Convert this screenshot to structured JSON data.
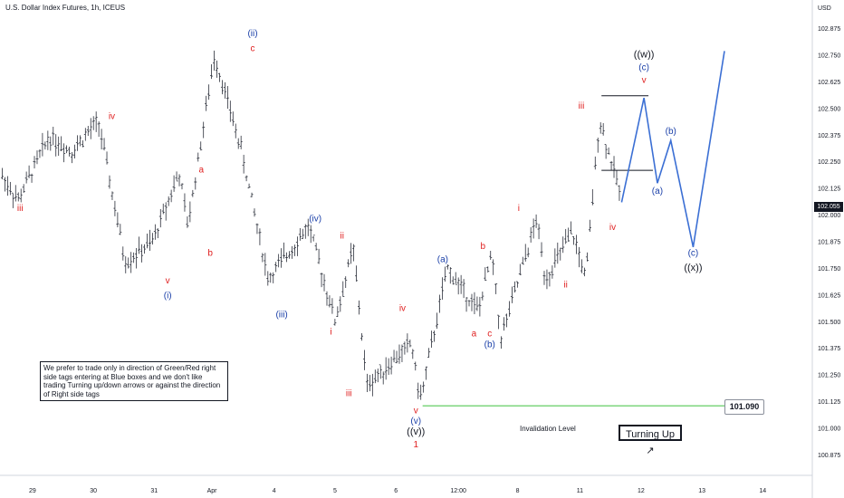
{
  "header": {
    "title": "U.S. Dollar Index Futures, 1h, ICEUS"
  },
  "note": "We prefer to trade only in direction of Green/Red right side tags entering at Blue boxes and we don't like trading Turning up/down arrows or against the direction of Right side tags",
  "turning_label": "Turning Up ↗",
  "invalidation_label": "Invalidation Level",
  "invalidation_value": "101.090",
  "current_price": "102.055",
  "colors": {
    "red": "#e02020",
    "blue": "#1a3fa8",
    "black": "#131722",
    "green": "#7ed67e",
    "candle": "#2a2e39"
  },
  "chart_data": {
    "type": "line",
    "title": "U.S. Dollar Index Futures, 1h, ICEUS",
    "yunit": "USD",
    "ylim": [
      100.8,
      102.95
    ],
    "yticks": [
      "102.875",
      "102.750",
      "102.625",
      "102.500",
      "102.375",
      "102.250",
      "102.125",
      "102.000",
      "101.875",
      "101.750",
      "101.625",
      "101.500",
      "101.375",
      "101.250",
      "101.125",
      "101.000",
      "100.875"
    ],
    "xticks": [
      "29",
      "30",
      "31",
      "Apr",
      "4",
      "5",
      "6",
      "12:00",
      "8",
      "11",
      "12",
      "13",
      "14"
    ],
    "price_path": [
      {
        "t": 0.0,
        "y": 102.2
      },
      {
        "t": 0.4,
        "y": 102.07
      },
      {
        "t": 1.1,
        "y": 102.37
      },
      {
        "t": 1.6,
        "y": 102.3
      },
      {
        "t": 2.2,
        "y": 102.44
      },
      {
        "t": 2.8,
        "y": 101.78
      },
      {
        "t": 3.4,
        "y": 101.87
      },
      {
        "t": 4.0,
        "y": 102.2
      },
      {
        "t": 4.2,
        "y": 101.95
      },
      {
        "t": 4.8,
        "y": 102.75
      },
      {
        "t": 5.4,
        "y": 102.3
      },
      {
        "t": 6.0,
        "y": 101.7
      },
      {
        "t": 6.9,
        "y": 101.95
      },
      {
        "t": 7.5,
        "y": 101.5
      },
      {
        "t": 7.9,
        "y": 101.85
      },
      {
        "t": 8.2,
        "y": 101.2
      },
      {
        "t": 9.2,
        "y": 101.4
      },
      {
        "t": 9.4,
        "y": 101.13
      },
      {
        "t": 10.0,
        "y": 101.75
      },
      {
        "t": 10.7,
        "y": 101.55
      },
      {
        "t": 11.0,
        "y": 101.82
      },
      {
        "t": 11.2,
        "y": 101.42
      },
      {
        "t": 12.0,
        "y": 101.98
      },
      {
        "t": 12.2,
        "y": 101.7
      },
      {
        "t": 12.8,
        "y": 101.92
      },
      {
        "t": 13.1,
        "y": 101.7
      },
      {
        "t": 13.4,
        "y": 102.45
      },
      {
        "t": 13.9,
        "y": 102.08
      }
    ],
    "projection": [
      {
        "t": 13.9,
        "y": 102.06
      },
      {
        "t": 14.4,
        "y": 102.55
      },
      {
        "t": 14.7,
        "y": 102.15
      },
      {
        "t": 15.0,
        "y": 102.35
      },
      {
        "t": 15.5,
        "y": 101.85
      },
      {
        "t": 16.2,
        "y": 102.77
      }
    ],
    "levels": [
      {
        "y": 102.56,
        "t0": 13.45,
        "t1": 14.5
      },
      {
        "y": 102.21,
        "t0": 13.45,
        "t1": 14.6
      },
      {
        "y": 101.105,
        "t0": 9.45,
        "t1": 16.2
      }
    ],
    "labels": [
      {
        "t": 0.45,
        "y": 102.02,
        "text": "iii",
        "color": "red"
      },
      {
        "t": 2.5,
        "y": 102.45,
        "text": "iv",
        "color": "red"
      },
      {
        "t": 3.75,
        "y": 101.68,
        "text": "v",
        "color": "red"
      },
      {
        "t": 3.75,
        "y": 101.61,
        "text": "(i)",
        "color": "blue"
      },
      {
        "t": 4.5,
        "y": 102.2,
        "text": "a",
        "color": "red"
      },
      {
        "t": 4.7,
        "y": 101.81,
        "text": "b",
        "color": "red"
      },
      {
        "t": 5.65,
        "y": 102.84,
        "text": "(ii)",
        "color": "blue"
      },
      {
        "t": 5.65,
        "y": 102.77,
        "text": "c",
        "color": "red"
      },
      {
        "t": 6.3,
        "y": 101.52,
        "text": "(iii)",
        "color": "blue"
      },
      {
        "t": 7.05,
        "y": 101.97,
        "text": "(iv)",
        "color": "blue"
      },
      {
        "t": 7.65,
        "y": 101.89,
        "text": "ii",
        "color": "red"
      },
      {
        "t": 7.4,
        "y": 101.44,
        "text": "i",
        "color": "red"
      },
      {
        "t": 7.8,
        "y": 101.15,
        "text": "iii",
        "color": "red"
      },
      {
        "t": 9.0,
        "y": 101.55,
        "text": "iv",
        "color": "red"
      },
      {
        "t": 9.3,
        "y": 101.07,
        "text": "v",
        "color": "red"
      },
      {
        "t": 9.3,
        "y": 101.02,
        "text": "(v)",
        "color": "blue"
      },
      {
        "t": 9.3,
        "y": 100.97,
        "text": "((v))",
        "color": "black"
      },
      {
        "t": 9.3,
        "y": 100.91,
        "text": "1",
        "color": "red"
      },
      {
        "t": 9.9,
        "y": 101.78,
        "text": "(a)",
        "color": "blue"
      },
      {
        "t": 10.6,
        "y": 101.43,
        "text": "a",
        "color": "red"
      },
      {
        "t": 10.8,
        "y": 101.84,
        "text": "b",
        "color": "red"
      },
      {
        "t": 10.95,
        "y": 101.43,
        "text": "c",
        "color": "red"
      },
      {
        "t": 10.95,
        "y": 101.38,
        "text": "(b)",
        "color": "blue"
      },
      {
        "t": 11.6,
        "y": 102.02,
        "text": "i",
        "color": "red"
      },
      {
        "t": 12.65,
        "y": 101.66,
        "text": "ii",
        "color": "red"
      },
      {
        "t": 13.0,
        "y": 102.5,
        "text": "iii",
        "color": "red"
      },
      {
        "t": 13.7,
        "y": 101.93,
        "text": "iv",
        "color": "red"
      },
      {
        "t": 14.4,
        "y": 102.74,
        "text": "((w))",
        "color": "black"
      },
      {
        "t": 14.4,
        "y": 102.68,
        "text": "(c)",
        "color": "blue"
      },
      {
        "t": 14.4,
        "y": 102.62,
        "text": "v",
        "color": "red"
      },
      {
        "t": 14.7,
        "y": 102.1,
        "text": "(a)",
        "color": "blue"
      },
      {
        "t": 15.0,
        "y": 102.38,
        "text": "(b)",
        "color": "blue"
      },
      {
        "t": 15.5,
        "y": 101.81,
        "text": "(c)",
        "color": "blue"
      },
      {
        "t": 15.5,
        "y": 101.74,
        "text": "((x))",
        "color": "black"
      }
    ]
  }
}
